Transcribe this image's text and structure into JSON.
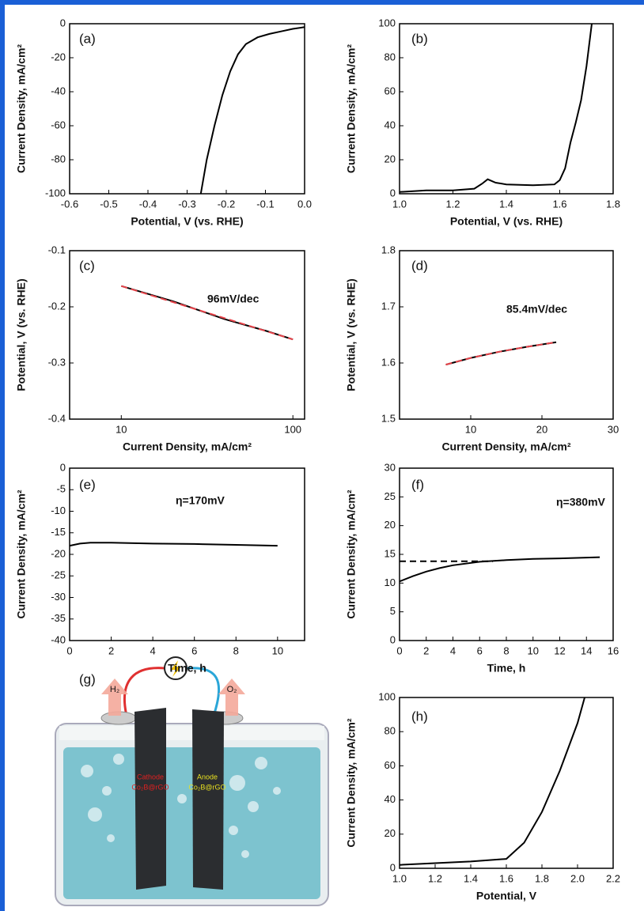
{
  "chart_data": [
    {
      "type": "line",
      "label": "(a)",
      "xlabel": "Potential, V (vs. RHE)",
      "ylabel": "Current Density, mA/cm²",
      "xlim": [
        -0.6,
        0
      ],
      "ylim": [
        -100,
        0
      ],
      "xticks": [
        -0.6,
        -0.5,
        -0.4,
        -0.3,
        -0.2,
        -0.1,
        {
          "value": 0,
          "label": "0.0"
        }
      ],
      "yticks": [
        -100,
        -80,
        -60,
        -40,
        -20,
        0
      ],
      "series": [
        {
          "color": "#000000",
          "x": [
            -0.265,
            -0.25,
            -0.23,
            -0.21,
            -0.19,
            -0.17,
            -0.15,
            -0.12,
            -0.09,
            -0.06,
            -0.03,
            0
          ],
          "values": [
            -100,
            -80,
            -60,
            -42,
            -28,
            -18,
            -12,
            -8,
            -6,
            -4.5,
            -3,
            -2
          ]
        }
      ]
    },
    {
      "type": "line",
      "label": "(b)",
      "xlabel": "Potential, V (vs. RHE)",
      "ylabel": "Current Density, mA/cm²",
      "xlim": [
        1,
        1.8
      ],
      "ylim": [
        0,
        100
      ],
      "xticks": [
        {
          "value": 1,
          "label": "1.0"
        },
        1.2,
        1.4,
        1.6,
        1.8
      ],
      "yticks": [
        0,
        20,
        40,
        60,
        80,
        100
      ],
      "series": [
        {
          "color": "#000000",
          "x": [
            1,
            1.1,
            1.2,
            1.28,
            1.31,
            1.33,
            1.36,
            1.4,
            1.5,
            1.58,
            1.6,
            1.62,
            1.64,
            1.66,
            1.68,
            1.7,
            1.72
          ],
          "values": [
            1,
            2,
            2,
            3,
            6,
            8.5,
            6.5,
            5.5,
            5,
            5.5,
            8,
            15,
            30,
            42,
            55,
            75,
            100
          ]
        }
      ]
    },
    {
      "type": "line",
      "label": "(c)",
      "annotation": "96mV/dec",
      "xlabel": "Current Density, mA/cm²",
      "ylabel": "Potential, V (vs. RHE)",
      "xscale": "log",
      "xlim": [
        5,
        117
      ],
      "ylim": [
        -0.4,
        -0.1
      ],
      "xticks": [
        10,
        100
      ],
      "yticks": [
        -0.4,
        -0.3,
        -0.2,
        -0.1
      ],
      "series": [
        {
          "color": "#000000",
          "x": [
            10,
            20,
            40,
            70,
            100
          ],
          "values": [
            -0.163,
            -0.19,
            -0.222,
            -0.243,
            -0.258
          ]
        },
        {
          "color": "#e8434a",
          "dash": true,
          "x": [
            10,
            100
          ],
          "values": [
            -0.163,
            -0.258
          ]
        }
      ]
    },
    {
      "type": "line",
      "label": "(d)",
      "annotation": "85.4mV/dec",
      "xlabel": "Current Density, mA/cm²",
      "ylabel": "Potential, V (vs. RHE)",
      "xlim": [
        0,
        30
      ],
      "ylim": [
        1.5,
        1.8
      ],
      "xticks": [
        10,
        20,
        30
      ],
      "yticks": [
        1.5,
        1.6,
        1.7,
        1.8
      ],
      "series": [
        {
          "color": "#000000",
          "x": [
            6.5,
            10,
            14,
            18,
            22
          ],
          "values": [
            1.597,
            1.609,
            1.62,
            1.629,
            1.637
          ]
        },
        {
          "color": "#e8434a",
          "dash": true,
          "x": [
            6.5,
            10,
            14,
            18,
            22
          ],
          "values": [
            1.597,
            1.609,
            1.62,
            1.629,
            1.637
          ]
        }
      ]
    },
    {
      "type": "line",
      "label": "(e)",
      "annotation": "η=170mV",
      "xlabel": "Time, h",
      "ylabel": "Current Density, mA/cm²",
      "xlim": [
        0,
        11.3
      ],
      "ylim": [
        -40,
        0
      ],
      "xticks": [
        0,
        2,
        4,
        6,
        8,
        10
      ],
      "yticks": [
        -40,
        -35,
        -30,
        -25,
        -20,
        -15,
        -10,
        -5,
        0
      ],
      "series": [
        {
          "color": "#000000",
          "x": [
            0,
            0.5,
            1,
            2,
            4,
            6,
            8,
            10
          ],
          "values": [
            -18,
            -17.5,
            -17.3,
            -17.3,
            -17.5,
            -17.6,
            -17.8,
            -18
          ]
        }
      ]
    },
    {
      "type": "line",
      "label": "(f)",
      "annotation": "η=380mV",
      "xlabel": "Time, h",
      "ylabel": "Current Density, mA/cm²",
      "xlim": [
        0,
        16
      ],
      "ylim": [
        0,
        30
      ],
      "xticks": [
        0,
        2,
        4,
        6,
        8,
        10,
        12,
        14,
        16
      ],
      "yticks": [
        0,
        5,
        10,
        15,
        20,
        25,
        30
      ],
      "series": [
        {
          "color": "#000000",
          "x": [
            0,
            1,
            2,
            3,
            4,
            6,
            8,
            10,
            12,
            15
          ],
          "values": [
            10.3,
            11.2,
            12,
            12.6,
            13.1,
            13.7,
            14,
            14.2,
            14.3,
            14.5
          ]
        },
        {
          "color": "#000000",
          "dash": true,
          "x": [
            0,
            7
          ],
          "values": [
            13.8,
            13.8
          ]
        }
      ]
    },
    {
      "type": "line",
      "label": "(h)",
      "xlabel": "Potential, V",
      "ylabel": "Current Density, mA/cm²",
      "xlim": [
        1,
        2.2
      ],
      "ylim": [
        0,
        100
      ],
      "xticks": [
        {
          "value": 1,
          "label": "1.0"
        },
        1.2,
        1.4,
        1.6,
        1.8,
        {
          "value": 2,
          "label": "2.0"
        },
        2.2
      ],
      "yticks": [
        0,
        20,
        40,
        60,
        80,
        100
      ],
      "series": [
        {
          "color": "#000000",
          "x": [
            1,
            1.2,
            1.4,
            1.6,
            1.7,
            1.8,
            1.9,
            2,
            2.04
          ],
          "values": [
            2,
            3,
            4,
            5.5,
            15,
            33,
            57,
            85,
            100
          ]
        }
      ]
    }
  ],
  "diagram": {
    "label": "(g)",
    "gas_left": "H₂",
    "gas_right": "O₂",
    "cathode": "Cathode",
    "cathode_material": "Co₂B@rGO",
    "anode": "Anode",
    "anode_material": "Co₂B@rGO"
  }
}
